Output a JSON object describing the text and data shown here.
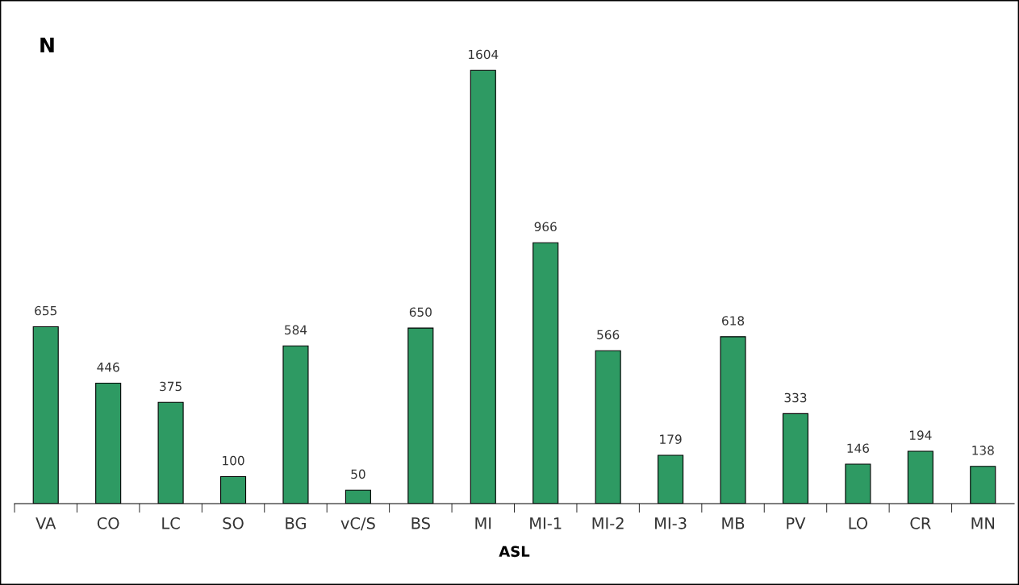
{
  "chart_data": {
    "type": "bar",
    "categories": [
      "VA",
      "CO",
      "LC",
      "SO",
      "BG",
      "vC/S",
      "BS",
      "MI",
      "MI-1",
      "MI-2",
      "MI-3",
      "MB",
      "PV",
      "LO",
      "CR",
      "MN"
    ],
    "values": [
      655,
      446,
      375,
      100,
      584,
      50,
      650,
      1604,
      966,
      566,
      179,
      618,
      333,
      146,
      194,
      138
    ],
    "color": "#2e9a63",
    "ylabel": "N",
    "xlabel": "ASL",
    "data_labels": true,
    "grid": false,
    "legend": false
  }
}
